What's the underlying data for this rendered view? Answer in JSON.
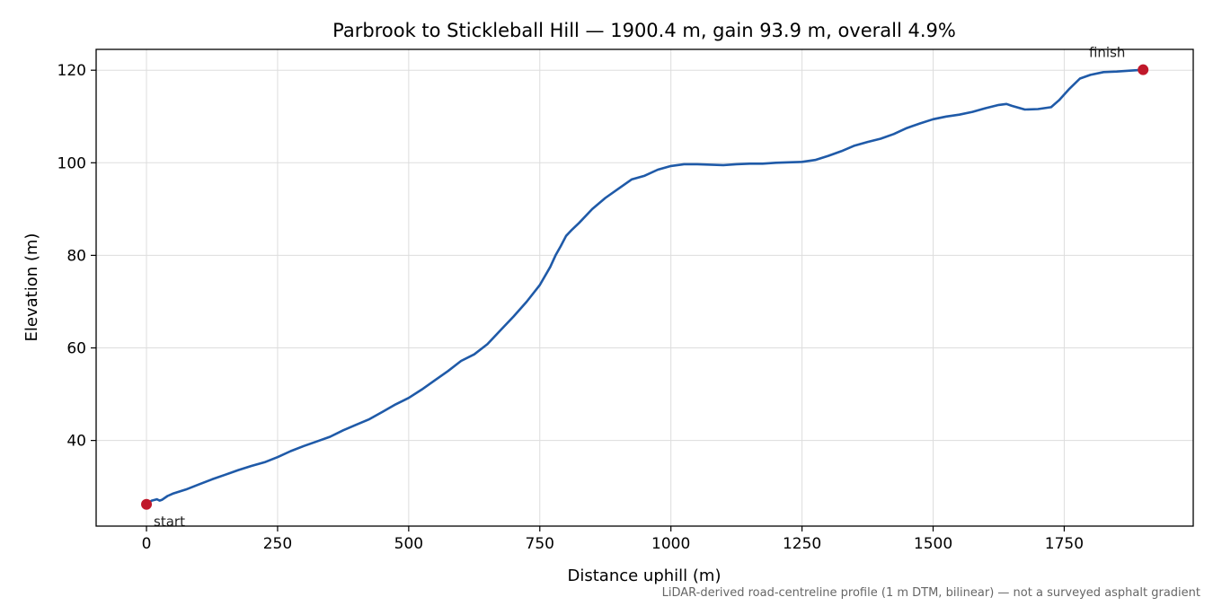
{
  "chart_data": {
    "type": "line",
    "title": "Parbrook to Stickleball Hill — 1900.4 m, gain 93.9 m, overall 4.9%",
    "xlabel": "Distance uphill (m)",
    "ylabel": "Elevation (m)",
    "xlim": [
      -96,
      1996
    ],
    "ylim": [
      21.5,
      124.5
    ],
    "xticks": [
      0,
      250,
      500,
      750,
      1000,
      1250,
      1500,
      1750
    ],
    "yticks": [
      40,
      60,
      80,
      100,
      120
    ],
    "grid": true,
    "line_color": "#1f5aa8",
    "marker_color": "#c0182a",
    "series": [
      {
        "x": [
          0,
          10,
          20,
          25,
          30,
          40,
          50,
          75,
          100,
          125,
          150,
          175,
          200,
          225,
          250,
          275,
          300,
          325,
          350,
          375,
          400,
          425,
          450,
          475,
          500,
          525,
          550,
          575,
          600,
          625,
          650,
          675,
          700,
          725,
          750,
          770,
          780,
          790,
          800,
          810,
          825,
          850,
          875,
          900,
          925,
          950,
          975,
          1000,
          1025,
          1050,
          1075,
          1100,
          1125,
          1150,
          1175,
          1200,
          1225,
          1250,
          1275,
          1300,
          1325,
          1350,
          1375,
          1400,
          1425,
          1450,
          1475,
          1500,
          1525,
          1550,
          1575,
          1600,
          1625,
          1640,
          1650,
          1675,
          1700,
          1725,
          1740,
          1760,
          1780,
          1800,
          1825,
          1850,
          1875,
          1900.4
        ],
        "y": [
          26.2,
          27.0,
          27.3,
          27.0,
          27.2,
          28.0,
          28.5,
          29.4,
          30.5,
          31.6,
          32.6,
          33.6,
          34.5,
          35.3,
          36.4,
          37.7,
          38.8,
          39.8,
          40.8,
          42.2,
          43.4,
          44.6,
          46.2,
          47.8,
          49.2,
          51.0,
          53.0,
          55.0,
          57.2,
          58.6,
          60.8,
          63.8,
          66.8,
          70.0,
          73.6,
          77.5,
          80.0,
          82.0,
          84.2,
          85.4,
          87.0,
          90.0,
          92.4,
          94.4,
          96.4,
          97.2,
          98.5,
          99.3,
          99.7,
          99.7,
          99.6,
          99.5,
          99.7,
          99.8,
          99.8,
          100.0,
          100.1,
          100.2,
          100.6,
          101.5,
          102.5,
          103.7,
          104.5,
          105.2,
          106.2,
          107.5,
          108.5,
          109.4,
          110.0,
          110.4,
          111.0,
          111.8,
          112.5,
          112.7,
          112.3,
          111.5,
          111.6,
          112.0,
          113.5,
          116.0,
          118.2,
          119.0,
          119.6,
          119.7,
          119.9,
          120.1
        ]
      }
    ],
    "annotations": [
      {
        "label": "start",
        "x": 0,
        "y": 26.2
      },
      {
        "label": "finish",
        "x": 1900.4,
        "y": 120.1
      }
    ],
    "caption": "LiDAR-derived road-centreline profile (1 m DTM, bilinear) — not a surveyed asphalt gradient"
  }
}
